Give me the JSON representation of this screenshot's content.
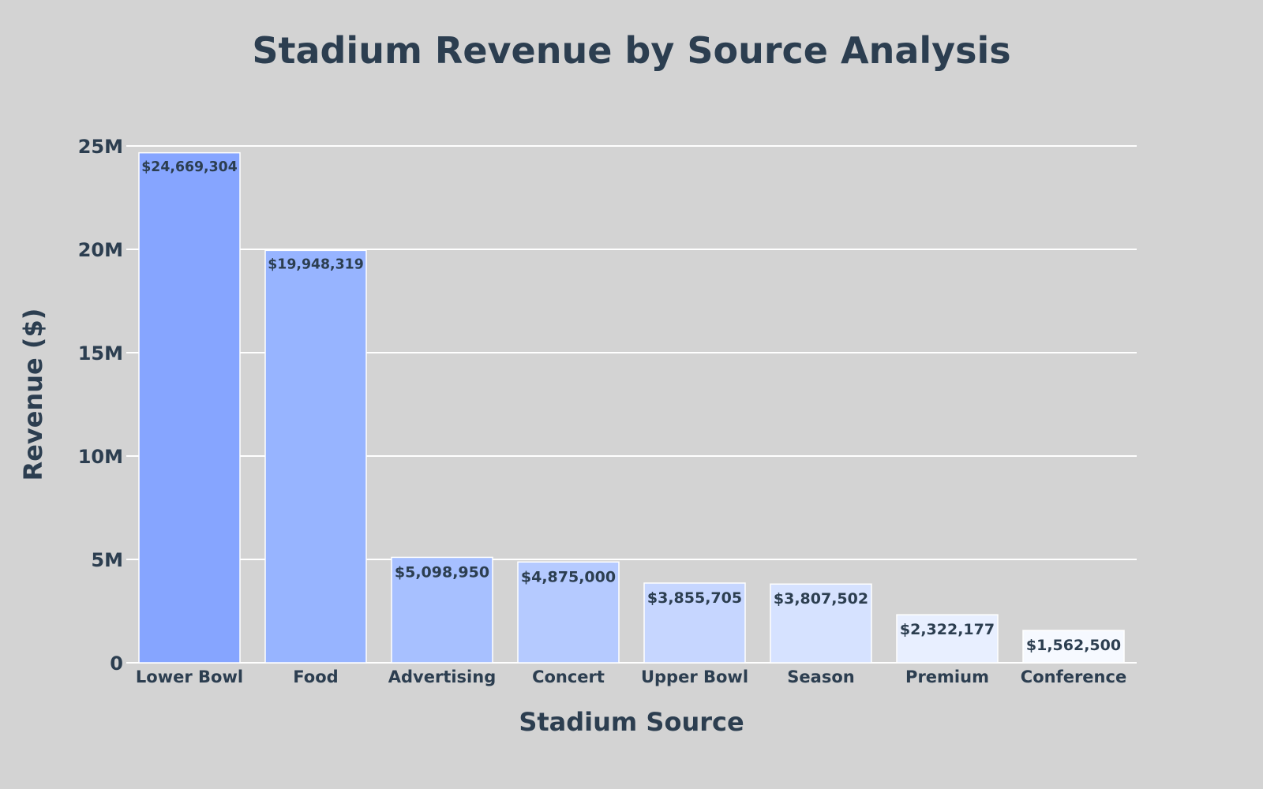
{
  "chart_data": {
    "type": "bar",
    "title": "Stadium Revenue by Source Analysis",
    "xlabel": "Stadium Source",
    "ylabel": "Revenue ($)",
    "categories": [
      "Lower Bowl",
      "Food",
      "Advertising",
      "Concert",
      "Upper Bowl",
      "Season",
      "Premium",
      "Conference"
    ],
    "values": [
      24669304,
      19948319,
      5098950,
      4875000,
      3855705,
      3807502,
      2322177,
      1562500
    ],
    "data_labels": [
      "$24,669,304",
      "$19,948,319",
      "$5,098,950",
      "$4,875,000",
      "$3,855,705",
      "$3,807,502",
      "$2,322,177",
      "$1,562,500"
    ],
    "bar_colors": [
      "#86a5ff",
      "#97b4ff",
      "#a7c0ff",
      "#b5caff",
      "#c6d6ff",
      "#d6e2ff",
      "#e8efff",
      "#f6f9ff"
    ],
    "ylim": [
      0,
      25000000
    ],
    "yticks": [
      0,
      5000000,
      10000000,
      15000000,
      20000000,
      25000000
    ],
    "ytick_labels": [
      "0",
      "5M",
      "10M",
      "15M",
      "20M",
      "25M"
    ],
    "grid": true,
    "legend": "none",
    "colors": {
      "background": "#d3d3d3",
      "text": "#2c3e50",
      "grid": "#ffffff"
    }
  }
}
